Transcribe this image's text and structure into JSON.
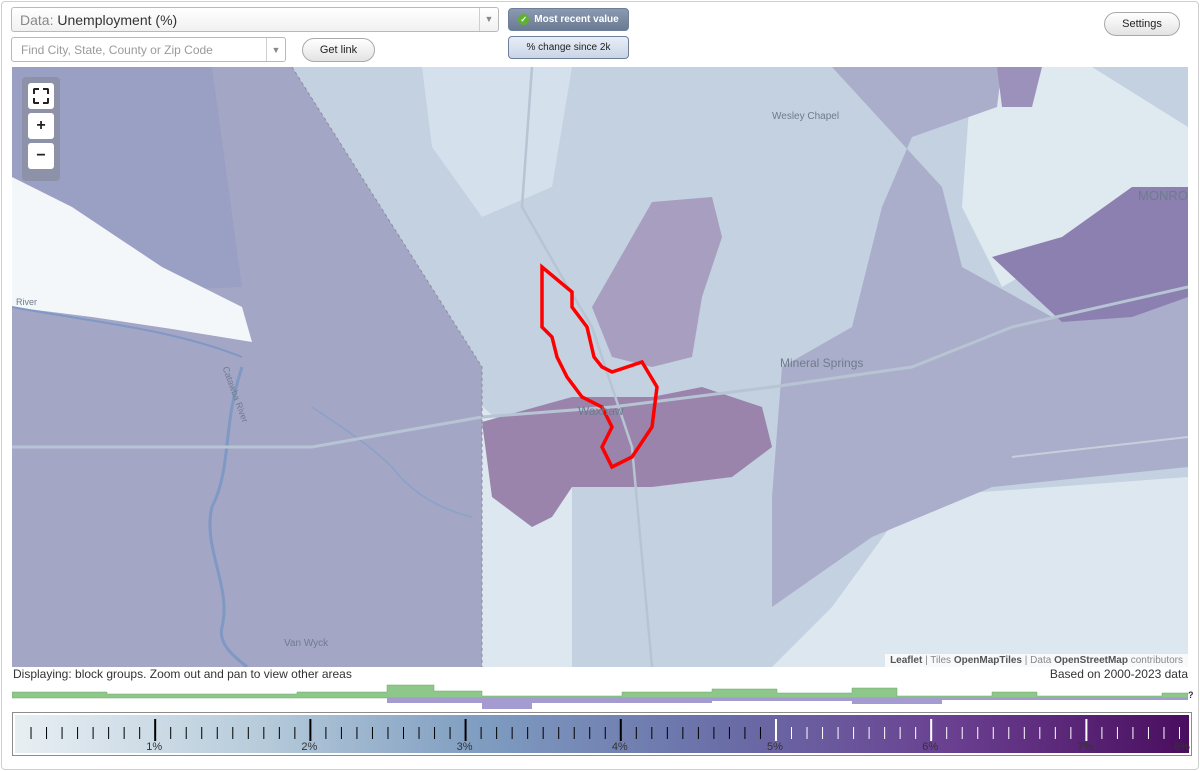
{
  "controls": {
    "data_select": {
      "prefix": "Data:",
      "value": "Unemployment (%)"
    },
    "search": {
      "placeholder": "Find City, State, County or Zip Code"
    },
    "get_link": "Get link",
    "mode_active": "Most recent value",
    "mode_inactive": "% change since 2k",
    "settings": "Settings"
  },
  "map": {
    "zoom_in": "+",
    "zoom_out": "−",
    "places": {
      "waxhaw": "Waxhaw",
      "mineral_springs": "Mineral Springs",
      "wesley_chapel": "Wesley Chapel",
      "monroe": "MONRO",
      "van_wyck": "Van Wyck",
      "river": "Catawba River",
      "river_short": "River"
    },
    "attribution": {
      "leaflet": "Leaflet",
      "tiles_prefix": "Tiles",
      "tiles": "OpenMapTiles",
      "data_prefix": "Data",
      "data": "OpenStreetMap",
      "contributors": "contributors"
    },
    "highlight_color": "#ff0000"
  },
  "status": {
    "left": "Displaying: block groups. Zoom out and pan to view other areas",
    "right": "Based on 2000-2023 data"
  },
  "histogram_marker": "?",
  "legend": {
    "min": 0,
    "max": 8,
    "labels": [
      "1%",
      "2%",
      "3%",
      "4%",
      "5%",
      "6%",
      "7%",
      "8%"
    ],
    "colors": [
      "#e8eff3",
      "#b9cddc",
      "#7e9cc0",
      "#6a6fa8",
      "#6a3f90",
      "#4a0d5e"
    ]
  }
}
